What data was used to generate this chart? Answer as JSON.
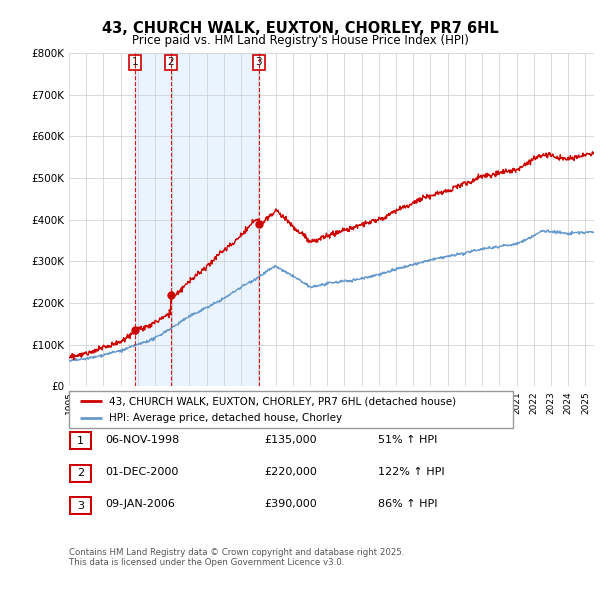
{
  "title": "43, CHURCH WALK, EUXTON, CHORLEY, PR7 6HL",
  "subtitle": "Price paid vs. HM Land Registry's House Price Index (HPI)",
  "sales": [
    {
      "label": "1",
      "date_num": 1998.85,
      "price": 135000,
      "hpi_pct": 51
    },
    {
      "label": "2",
      "date_num": 2000.92,
      "price": 220000,
      "hpi_pct": 122
    },
    {
      "label": "3",
      "date_num": 2006.03,
      "price": 390000,
      "hpi_pct": 86
    }
  ],
  "legend_label_red": "43, CHURCH WALK, EUXTON, CHORLEY, PR7 6HL (detached house)",
  "legend_label_blue": "HPI: Average price, detached house, Chorley",
  "table_rows": [
    [
      "1",
      "06-NOV-1998",
      "£135,000",
      "51% ↑ HPI"
    ],
    [
      "2",
      "01-DEC-2000",
      "£220,000",
      "122% ↑ HPI"
    ],
    [
      "3",
      "09-JAN-2006",
      "£390,000",
      "86% ↑ HPI"
    ]
  ],
  "footer": "Contains HM Land Registry data © Crown copyright and database right 2025.\nThis data is licensed under the Open Government Licence v3.0.",
  "red_color": "#cc0000",
  "blue_color": "#6699cc",
  "fill_color": "#ddeeff",
  "ylim": [
    0,
    800000
  ],
  "xlim": [
    1995.0,
    2025.5
  ],
  "ylabel_ticks": [
    0,
    100000,
    200000,
    300000,
    400000,
    500000,
    600000,
    700000,
    800000
  ],
  "ylabel_labels": [
    "£0",
    "£100K",
    "£200K",
    "£300K",
    "£400K",
    "£500K",
    "£600K",
    "£700K",
    "£800K"
  ],
  "xticks": [
    1995,
    1996,
    1997,
    1998,
    1999,
    2000,
    2001,
    2002,
    2003,
    2004,
    2005,
    2006,
    2007,
    2008,
    2009,
    2010,
    2011,
    2012,
    2013,
    2014,
    2015,
    2016,
    2017,
    2018,
    2019,
    2020,
    2021,
    2022,
    2023,
    2024,
    2025
  ],
  "background_color": "#ffffff",
  "grid_color": "#cccccc"
}
